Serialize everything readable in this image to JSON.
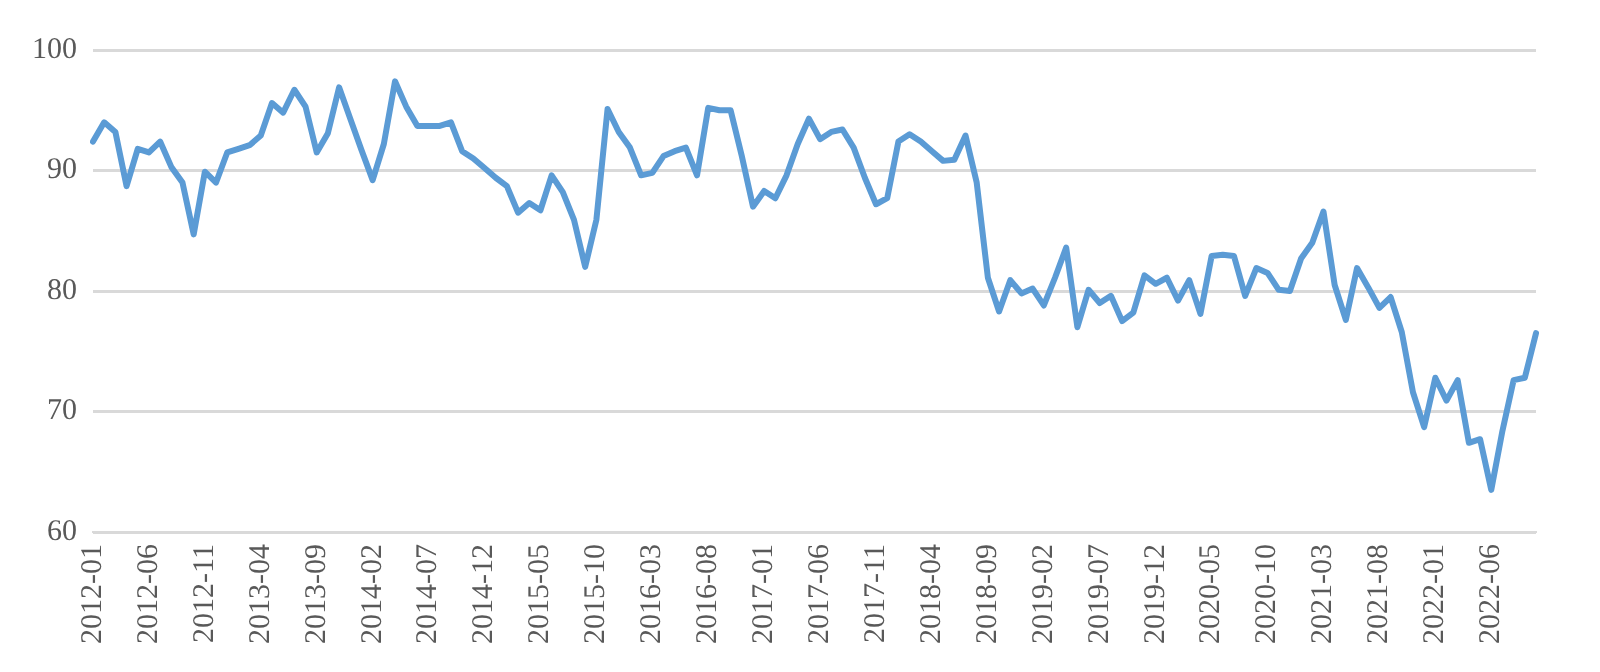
{
  "chart_data": {
    "type": "line",
    "categories": [
      "2012-01",
      null,
      null,
      null,
      null,
      "2012-06",
      null,
      null,
      null,
      null,
      "2012-11",
      null,
      null,
      null,
      null,
      "2013-04",
      null,
      null,
      null,
      null,
      "2013-09",
      null,
      null,
      null,
      null,
      "2014-02",
      null,
      null,
      null,
      null,
      "2014-07",
      null,
      null,
      null,
      null,
      "2014-12",
      null,
      null,
      null,
      null,
      "2015-05",
      null,
      null,
      null,
      null,
      "2015-10",
      null,
      null,
      null,
      null,
      "2016-03",
      null,
      null,
      null,
      null,
      "2016-08",
      null,
      null,
      null,
      null,
      "2017-01",
      null,
      null,
      null,
      null,
      "2017-06",
      null,
      null,
      null,
      null,
      "2017-11",
      null,
      null,
      null,
      null,
      "2018-04",
      null,
      null,
      null,
      null,
      "2018-09",
      null,
      null,
      null,
      null,
      "2019-02",
      null,
      null,
      null,
      null,
      "2019-07",
      null,
      null,
      null,
      null,
      "2019-12",
      null,
      null,
      null,
      null,
      "2020-05",
      null,
      null,
      null,
      null,
      "2020-10",
      null,
      null,
      null,
      null,
      "2021-03",
      null,
      null,
      null,
      null,
      "2021-08",
      null,
      null,
      null,
      null,
      "2022-01",
      null,
      null,
      null,
      null,
      "2022-06",
      null,
      null,
      null,
      null
    ],
    "series": [
      {
        "color": "#5b9bd5",
        "values": [
          92.4,
          94.0,
          93.2,
          88.7,
          91.8,
          91.5,
          92.4,
          90.3,
          89.0,
          84.7,
          89.9,
          89.0,
          91.5,
          91.8,
          92.1,
          92.9,
          95.6,
          94.8,
          96.7,
          95.3,
          91.5,
          93.1,
          96.9,
          94.3,
          91.7,
          89.2,
          92.2,
          97.4,
          95.3,
          93.7,
          93.7,
          93.7,
          94.0,
          91.6,
          91.0,
          90.2,
          89.4,
          88.7,
          86.5,
          87.3,
          86.7,
          89.6,
          88.2,
          85.9,
          82.0,
          85.9,
          95.1,
          93.2,
          91.9,
          89.6,
          89.8,
          91.2,
          91.6,
          91.9,
          89.6,
          95.2,
          95.0,
          95.0,
          91.2,
          87.0,
          88.3,
          87.7,
          89.6,
          92.2,
          94.3,
          92.6,
          93.2,
          93.4,
          91.9,
          89.4,
          87.2,
          87.7,
          92.4,
          93.0,
          92.4,
          91.6,
          90.8,
          90.9,
          92.9,
          89.0,
          81.1,
          78.3,
          80.9,
          79.8,
          80.2,
          78.8,
          81.1,
          83.6,
          77.0,
          80.1,
          79.0,
          79.6,
          77.5,
          78.2,
          81.3,
          80.6,
          81.1,
          79.2,
          80.9,
          78.1,
          82.9,
          83.0,
          82.9,
          79.6,
          81.9,
          81.5,
          80.1,
          80.0,
          82.7,
          84.0,
          86.6,
          80.5,
          77.6,
          81.9,
          80.3,
          78.6,
          79.5,
          76.6,
          71.6,
          68.7,
          72.8,
          70.9,
          72.6,
          67.4,
          67.7,
          63.5,
          68.4,
          72.6,
          72.8,
          76.5
        ]
      }
    ],
    "ylim": [
      60,
      100
    ],
    "yticks": [
      60,
      70,
      80,
      90,
      100
    ],
    "grid": "y",
    "legend": false,
    "marker": "none",
    "line_style": "solid"
  }
}
